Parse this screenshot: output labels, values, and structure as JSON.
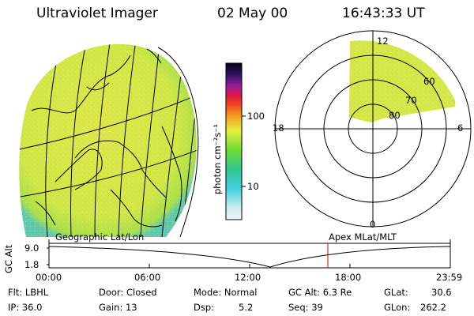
{
  "header": {
    "instrument": "Ultraviolet Imager",
    "date": "02 May 00",
    "time": "16:43:33 UT"
  },
  "colorbar": {
    "unit_label": "photon cm⁻²s⁻¹",
    "ticks": [
      "100",
      "10"
    ]
  },
  "polar_plot": {
    "mlt_labels": [
      "12",
      "18",
      "6",
      "0"
    ],
    "lat_labels": [
      "60",
      "70",
      "80"
    ]
  },
  "timeline": {
    "ylabel": "GC Alt",
    "y_ticks": [
      "9.0",
      "1.8"
    ],
    "left_title": "Geographic Lat/Lon",
    "right_title": "Apex MLat/MLT",
    "x_ticks": [
      "00:00",
      "06:00",
      "12:00",
      "18:00",
      "23:59"
    ],
    "marker_time": "16:43:33"
  },
  "info": {
    "flt": "Flt: LBHL",
    "ip": "IP: 36.0",
    "door": "Door: Closed",
    "gain": "Gain: 13",
    "mode": "Mode: Normal",
    "dsp_label": "Dsp:",
    "dsp_value": "5.2",
    "gcalt": "GC Alt: 6.3 Re",
    "seq": "Seq: 39",
    "glat_label": "GLat:",
    "glat_value": "30.6",
    "glon_label": "GLon:",
    "glon_value": "262.2"
  },
  "colors": {
    "disk_fill": "#d4e84a",
    "disk_edge": "#6cd0b0",
    "marker": "#e00000"
  }
}
